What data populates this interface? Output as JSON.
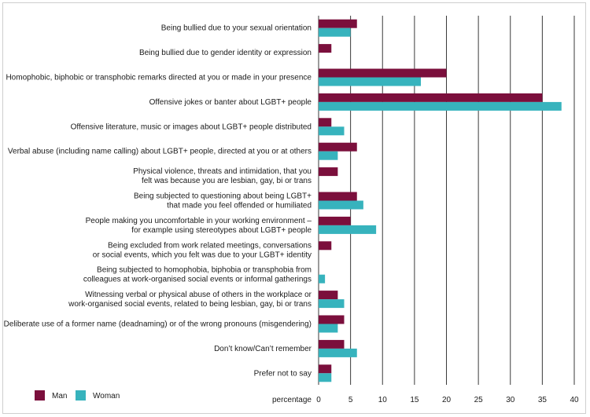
{
  "chart_data": {
    "type": "bar",
    "orientation": "horizontal",
    "categories": [
      [
        "Being bullied due to your sexual orientation"
      ],
      [
        "Being bullied due to gender identity or expression"
      ],
      [
        "Homophobic, biphobic or transphobic remarks directed at you or made in your presence"
      ],
      [
        "Offensive jokes or banter about LGBT+ people"
      ],
      [
        "Offensive literature, music or images about LGBT+ people distributed"
      ],
      [
        "Verbal abuse (including name calling) about LGBT+ people, directed at you or at others"
      ],
      [
        "Physical violence, threats and intimidation, that you",
        "felt was because you are lesbian, gay, bi or trans"
      ],
      [
        "Being subjected to questioning about being LGBT+",
        "that made you feel offended or humiliated"
      ],
      [
        "People making you uncomfortable in your working environment –",
        "for example using stereotypes about LGBT+ people"
      ],
      [
        "Being excluded from work related meetings, conversations",
        "or social events, which you felt was due to your LGBT+ identity"
      ],
      [
        "Being subjected to homophobia, biphobia or transphobia from",
        "colleagues at work-organised social events or informal gatherings"
      ],
      [
        "Witnessing verbal or physical abuse of others in the workplace or",
        "work-organised social events, related to being lesbian, gay, bi or trans"
      ],
      [
        "Deliberate use of a former name (deadnaming) or of the wrong pronouns (misgendering)"
      ],
      [
        "Don’t know/Can’t remember"
      ],
      [
        "Prefer not to say"
      ]
    ],
    "series": [
      {
        "name": "Man",
        "color": "#7b0f3c",
        "values": [
          6,
          2,
          20,
          35,
          2,
          6,
          3,
          6,
          5,
          2,
          0,
          3,
          4,
          4,
          2
        ]
      },
      {
        "name": "Woman",
        "color": "#37b3bd",
        "values": [
          5,
          0,
          16,
          38,
          4,
          3,
          0,
          7,
          9,
          0,
          1,
          4,
          3,
          6,
          2
        ]
      }
    ],
    "xlabel": "percentage",
    "xlim": [
      0,
      40
    ],
    "xticks": [
      0,
      5,
      10,
      15,
      20,
      25,
      30,
      35,
      40
    ],
    "grid": true,
    "legend": "bottom-left"
  }
}
